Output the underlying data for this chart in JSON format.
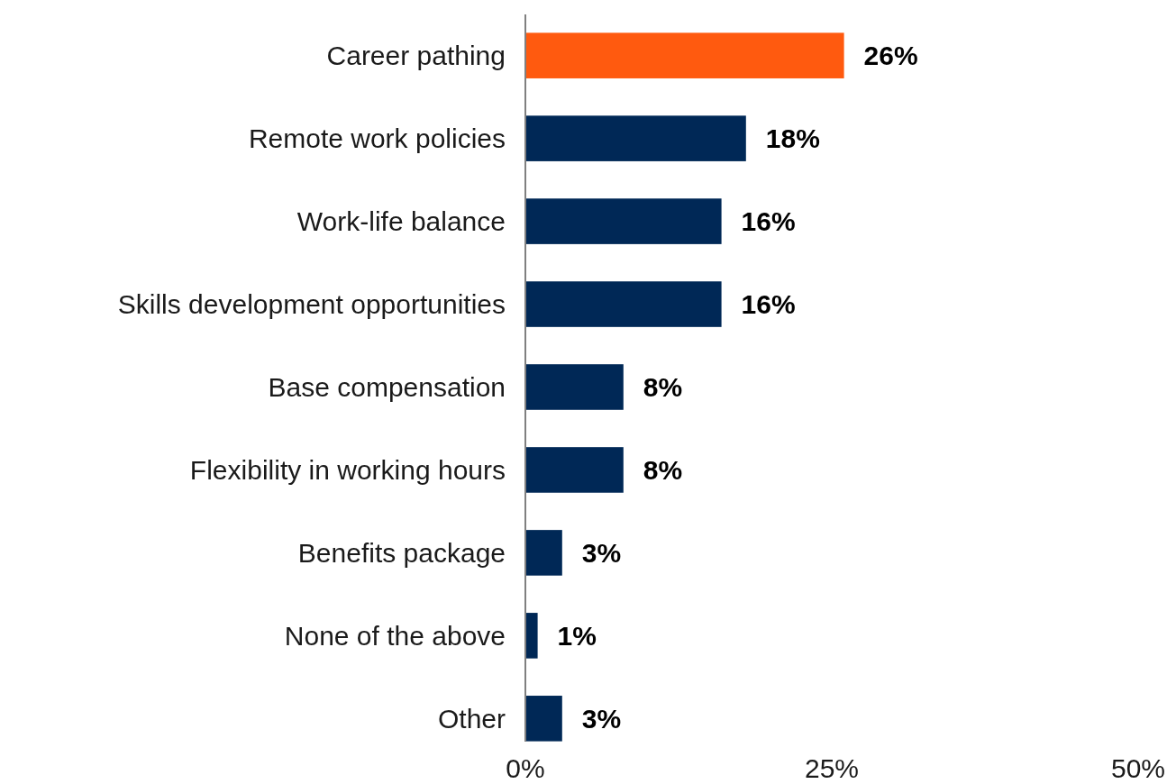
{
  "chart_data": {
    "type": "bar",
    "orientation": "horizontal",
    "categories": [
      "Career pathing",
      "Remote work policies",
      "Work-life balance",
      "Skills development opportunities",
      "Base compensation",
      "Flexibility in working hours",
      "Benefits package",
      "None of the above",
      "Other"
    ],
    "values": [
      26,
      18,
      16,
      16,
      8,
      8,
      3,
      1,
      3
    ],
    "colors": [
      "#ff5a0f",
      "#002856",
      "#002856",
      "#002856",
      "#002856",
      "#002856",
      "#002856",
      "#002856",
      "#002856"
    ],
    "value_labels": [
      "26%",
      "18%",
      "16%",
      "16%",
      "8%",
      "8%",
      "3%",
      "1%",
      "3%"
    ],
    "xlim": [
      0,
      50
    ],
    "xticks": [
      {
        "value": 0,
        "label": "0%"
      },
      {
        "value": 25,
        "label": "25%"
      },
      {
        "value": 50,
        "label": "50%"
      }
    ]
  }
}
